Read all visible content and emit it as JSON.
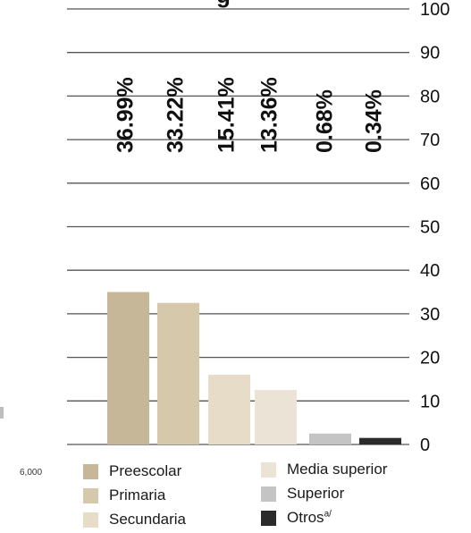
{
  "chart_data": {
    "type": "bar",
    "title_fragment": "g",
    "categories": [
      "Preescolar",
      "Primaria",
      "Secundaria",
      "Media superior",
      "Superior",
      "Otros"
    ],
    "values": [
      36.99,
      33.22,
      15.41,
      13.36,
      0.68,
      0.34
    ],
    "bar_heights": [
      35,
      32.5,
      16,
      12.5,
      2.5,
      1.5
    ],
    "data_labels": [
      "36.99%",
      "33.22%",
      "15.41%",
      "13.36%",
      "0.68%",
      "0.34%"
    ],
    "colors": [
      "#c7b799",
      "#d6c8ab",
      "#e6dcc8",
      "#ebe3d5",
      "#c4c4c4",
      "#2b2b2b"
    ],
    "ylim": [
      0,
      100
    ],
    "yticks": [
      "0",
      "10",
      "20",
      "30",
      "40",
      "50",
      "60",
      "70",
      "80",
      "90",
      "100"
    ],
    "grid": true,
    "legend_position": "bottom",
    "legend": [
      {
        "label": "Preescolar",
        "color": "#c7b799"
      },
      {
        "label": "Primaria",
        "color": "#d6c8ab"
      },
      {
        "label": "Secundaria",
        "color": "#e6dcc8"
      },
      {
        "label": "Media superior",
        "color": "#ebe3d5"
      },
      {
        "label": "Superior",
        "color": "#c4c4c4"
      },
      {
        "label": "Otros",
        "label_sup": "a/",
        "color": "#2b2b2b"
      }
    ]
  },
  "stray_number": "6,000"
}
